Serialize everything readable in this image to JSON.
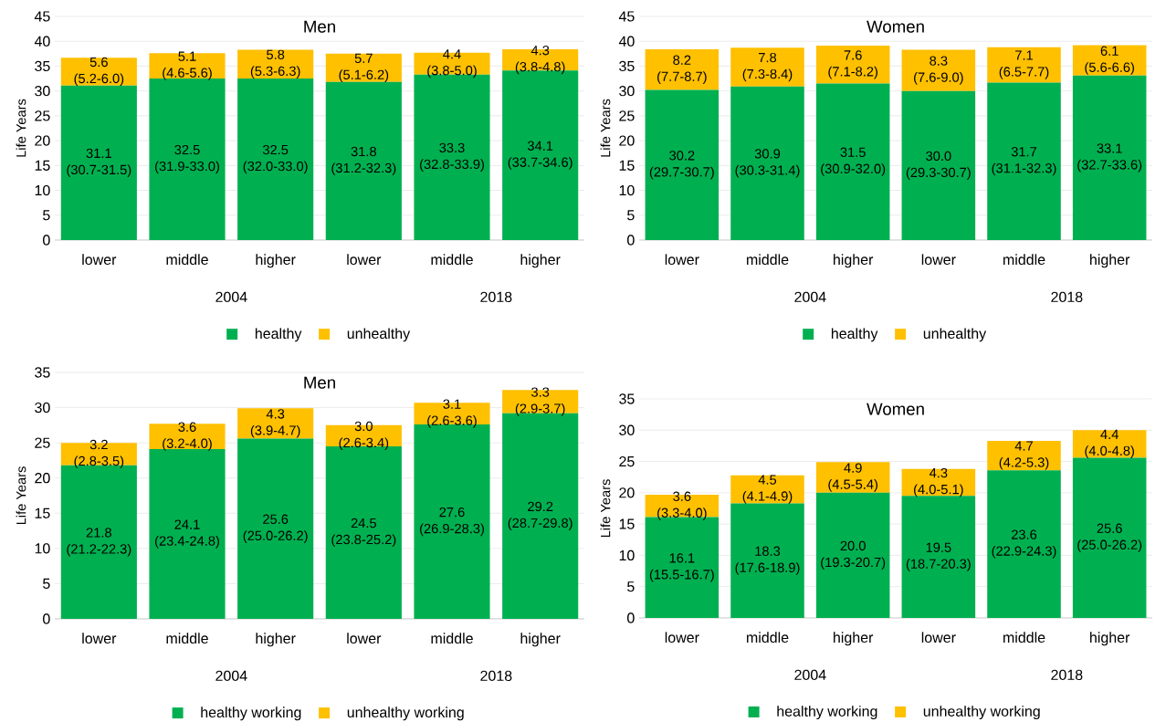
{
  "chart_data": [
    {
      "type": "bar",
      "stacked": true,
      "title": "Men",
      "ylabel": "Life Years",
      "categories": [
        "lower",
        "middle",
        "higher",
        "lower",
        "middle",
        "higher"
      ],
      "annotations": [
        "2004",
        "2018"
      ],
      "ylim": [
        0,
        45
      ],
      "yticks": [
        0,
        5,
        10,
        15,
        20,
        25,
        30,
        35,
        40,
        45
      ],
      "grid": "y",
      "legend": "bottom",
      "series": [
        {
          "name": "healthy",
          "color": "#00b050",
          "values": [
            31.1,
            32.5,
            32.5,
            31.8,
            33.3,
            34.1
          ],
          "value_labels": [
            "31.1 (30.7-31.5)",
            "32.5 (31.9-33.0)",
            "32.5 (32.0-33.0)",
            "31.8 (31.2-32.3)",
            "33.3 (32.8-33.9)",
            "34.1 (33.7-34.6)"
          ]
        },
        {
          "name": "unhealthy",
          "color": "#ffc000",
          "values": [
            5.6,
            5.1,
            5.8,
            5.7,
            4.4,
            4.3
          ],
          "value_labels": [
            "5.6 (5.2-6.0)",
            "5.1 (4.6-5.6)",
            "5.8 (5.3-6.3)",
            "5.7 (5.1-6.2)",
            "4.4 (3.8-5.0)",
            "4.3 (3.8-4.8)"
          ]
        }
      ]
    },
    {
      "type": "bar",
      "stacked": true,
      "title": "Women",
      "ylabel": "Life Years",
      "categories": [
        "lower",
        "middle",
        "higher",
        "lower",
        "middle",
        "higher"
      ],
      "annotations": [
        "2004",
        "2018"
      ],
      "ylim": [
        0,
        45
      ],
      "yticks": [
        0,
        5,
        10,
        15,
        20,
        25,
        30,
        35,
        40,
        45
      ],
      "grid": "y",
      "legend": "bottom",
      "series": [
        {
          "name": "healthy",
          "color": "#00b050",
          "values": [
            30.2,
            30.9,
            31.5,
            30.0,
            31.7,
            33.1
          ],
          "value_labels": [
            "30.2 (29.7-30.7)",
            "30.9 (30.3-31.4)",
            "31.5 (30.9-32.0)",
            "30.0 (29.3-30.7)",
            "31.7 (31.1-32.3)",
            "33.1 (32.7-33.6)"
          ]
        },
        {
          "name": "unhealthy",
          "color": "#ffc000",
          "values": [
            8.2,
            7.8,
            7.6,
            8.3,
            7.1,
            6.1
          ],
          "value_labels": [
            "8.2 (7.7-8.7)",
            "7.8 (7.3-8.4)",
            "7.6 (7.1-8.2)",
            "8.3 (7.6-9.0)",
            "7.1 (6.5-7.7)",
            "6.1 (5.6-6.6)"
          ]
        }
      ]
    },
    {
      "type": "bar",
      "stacked": true,
      "title": "Men",
      "ylabel": "Life Years",
      "categories": [
        "lower",
        "middle",
        "higher",
        "lower",
        "middle",
        "higher"
      ],
      "annotations": [
        "2004",
        "2018"
      ],
      "ylim": [
        0,
        35
      ],
      "yticks": [
        0,
        5,
        10,
        15,
        20,
        25,
        30,
        35
      ],
      "grid": "y",
      "legend": "bottom",
      "series": [
        {
          "name": "healthy working",
          "color": "#00b050",
          "values": [
            21.8,
            24.1,
            25.6,
            24.5,
            27.6,
            29.2
          ],
          "value_labels": [
            "21.8 (21.2-22.3)",
            "24.1 (23.4-24.8)",
            "25.6 (25.0-26.2)",
            "24.5 (23.8-25.2)",
            "27.6 (26.9-28.3)",
            "29.2 (28.7-29.8)"
          ]
        },
        {
          "name": "unhealthy working",
          "color": "#ffc000",
          "values": [
            3.2,
            3.6,
            4.3,
            3.0,
            3.1,
            3.3
          ],
          "value_labels": [
            "3.2 (2.8-3.5)",
            "3.6 (3.2-4.0)",
            "4.3 (3.9-4.7)",
            "3.0 (2.6-3.4)",
            "3.1 (2.6-3.6)",
            "3.3 (2.9-3.7)"
          ]
        }
      ]
    },
    {
      "type": "bar",
      "stacked": true,
      "title": "Women",
      "ylabel": "Life Years",
      "categories": [
        "lower",
        "middle",
        "higher",
        "lower",
        "middle",
        "higher"
      ],
      "annotations": [
        "2004",
        "2018"
      ],
      "ylim": [
        0,
        35
      ],
      "yticks": [
        0,
        5,
        10,
        15,
        20,
        25,
        30,
        35
      ],
      "grid": "y",
      "legend": "bottom",
      "series": [
        {
          "name": "healthy working",
          "color": "#00b050",
          "values": [
            16.1,
            18.3,
            20.0,
            19.5,
            23.6,
            25.6
          ],
          "value_labels": [
            "16.1 (15.5-16.7)",
            "18.3 (17.6-18.9)",
            "20.0 (19.3-20.7)",
            "19.5 (18.7-20.3)",
            "23.6 (22.9-24.3)",
            "25.6 (25.0-26.2)"
          ]
        },
        {
          "name": "unhealthy working",
          "color": "#ffc000",
          "values": [
            3.6,
            4.5,
            4.9,
            4.3,
            4.7,
            4.4
          ],
          "value_labels": [
            "3.6 (3.3-4.0)",
            "4.5 (4.1-4.9)",
            "4.9 (4.5-5.4)",
            "4.3 (4.0-5.1)",
            "4.7 (4.2-5.3)",
            "4.4 (4.0-4.8)"
          ]
        }
      ]
    }
  ]
}
